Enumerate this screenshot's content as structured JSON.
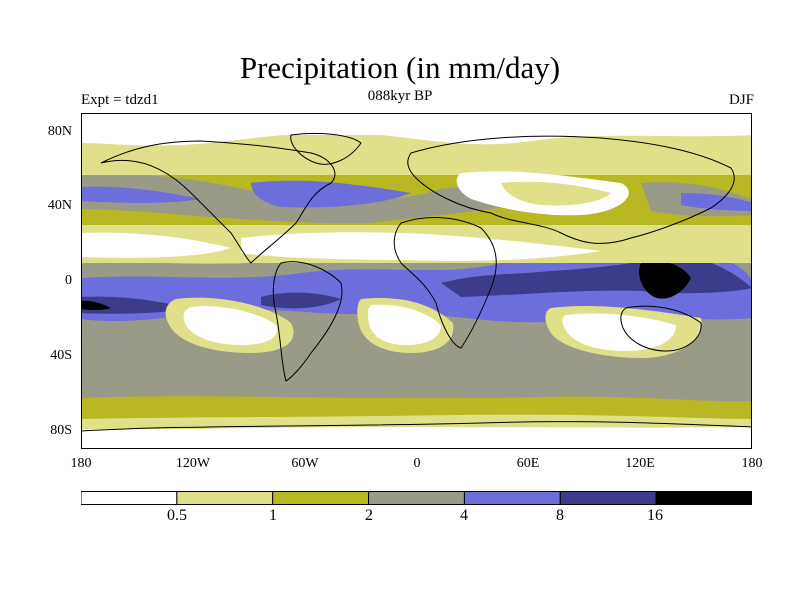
{
  "title": "Precipitation (in mm/day)",
  "subtitle_left": "Expt = tdzd1",
  "subtitle_center": "088kyr BP",
  "subtitle_right": "DJF",
  "y_ticks": [
    "80N",
    "40N",
    "0",
    "40S",
    "80S"
  ],
  "x_ticks": [
    "180",
    "120W",
    "60W",
    "0",
    "60E",
    "120E",
    "180"
  ],
  "colorbar": {
    "labels": [
      "0.5",
      "1",
      "2",
      "4",
      "8",
      "16"
    ],
    "colors": [
      "#ffffff",
      "#e0e08a",
      "#b8b822",
      "#9a9a88",
      "#6d6ddb",
      "#3c3c8a",
      "#000000"
    ]
  },
  "colors": {
    "white": "#ffffff",
    "light_yellow": "#e0e08a",
    "olive": "#b8b822",
    "gray": "#9a9a88",
    "light_blue": "#6d6ddb",
    "dark_blue": "#3c3c8a",
    "black": "#000000"
  }
}
